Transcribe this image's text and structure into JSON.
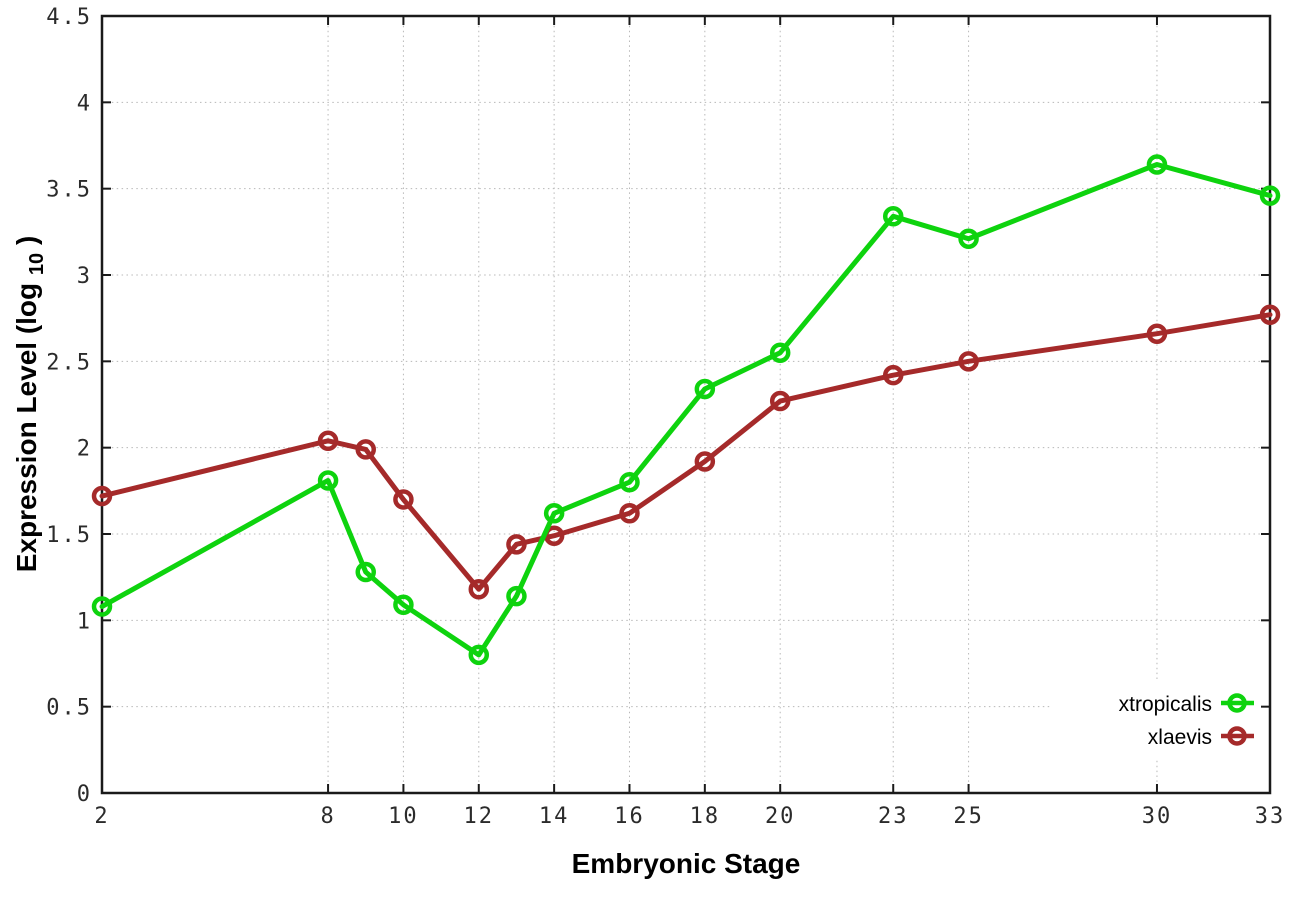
{
  "figure": {
    "background": "#ffffff",
    "border_color": "#1a1a1a",
    "grid_color": "#b8b8b8",
    "tick_label_color": "#2b2b2b"
  },
  "chart_data": {
    "type": "line",
    "title": "",
    "xlabel": "Embryonic Stage",
    "ylabel": "Expression Level (log10)",
    "ylabel_parts": {
      "prefix": "Expression Level (log",
      "sub": "10",
      "suffix": ")"
    },
    "xlim": [
      2,
      33
    ],
    "ylim": [
      0,
      4.5
    ],
    "x_ticks": [
      2,
      8,
      10,
      12,
      14,
      16,
      18,
      20,
      23,
      25,
      30,
      33
    ],
    "x_tick_labels": [
      "2",
      "8",
      "10",
      "12",
      "14",
      "16",
      "18",
      "20",
      "23",
      "25",
      "30",
      "33"
    ],
    "y_ticks": [
      0,
      0.5,
      1,
      1.5,
      2,
      2.5,
      3,
      3.5,
      4,
      4.5
    ],
    "y_tick_labels": [
      "0",
      "0.5",
      "1",
      "1.5",
      "2",
      "2.5",
      "3",
      "3.5",
      "4",
      "4.5"
    ],
    "grid": true,
    "grid_style": "dotted",
    "legend_position": "inside-bottom-right",
    "x": [
      2,
      8,
      9,
      10,
      12,
      13,
      14,
      16,
      18,
      20,
      23,
      25,
      30,
      33
    ],
    "series": [
      {
        "name": "xtropicalis",
        "color": "#0ed30e",
        "marker": "open-circle",
        "values": [
          1.08,
          1.81,
          1.28,
          1.09,
          0.8,
          1.14,
          1.62,
          1.8,
          2.34,
          2.55,
          3.34,
          3.21,
          3.64,
          3.46
        ]
      },
      {
        "name": "xlaevis",
        "color": "#a52a2a",
        "marker": "open-circle",
        "values": [
          1.72,
          2.04,
          1.99,
          1.7,
          1.18,
          1.44,
          1.49,
          1.62,
          1.92,
          2.27,
          2.42,
          2.5,
          2.66,
          2.77
        ]
      }
    ]
  }
}
